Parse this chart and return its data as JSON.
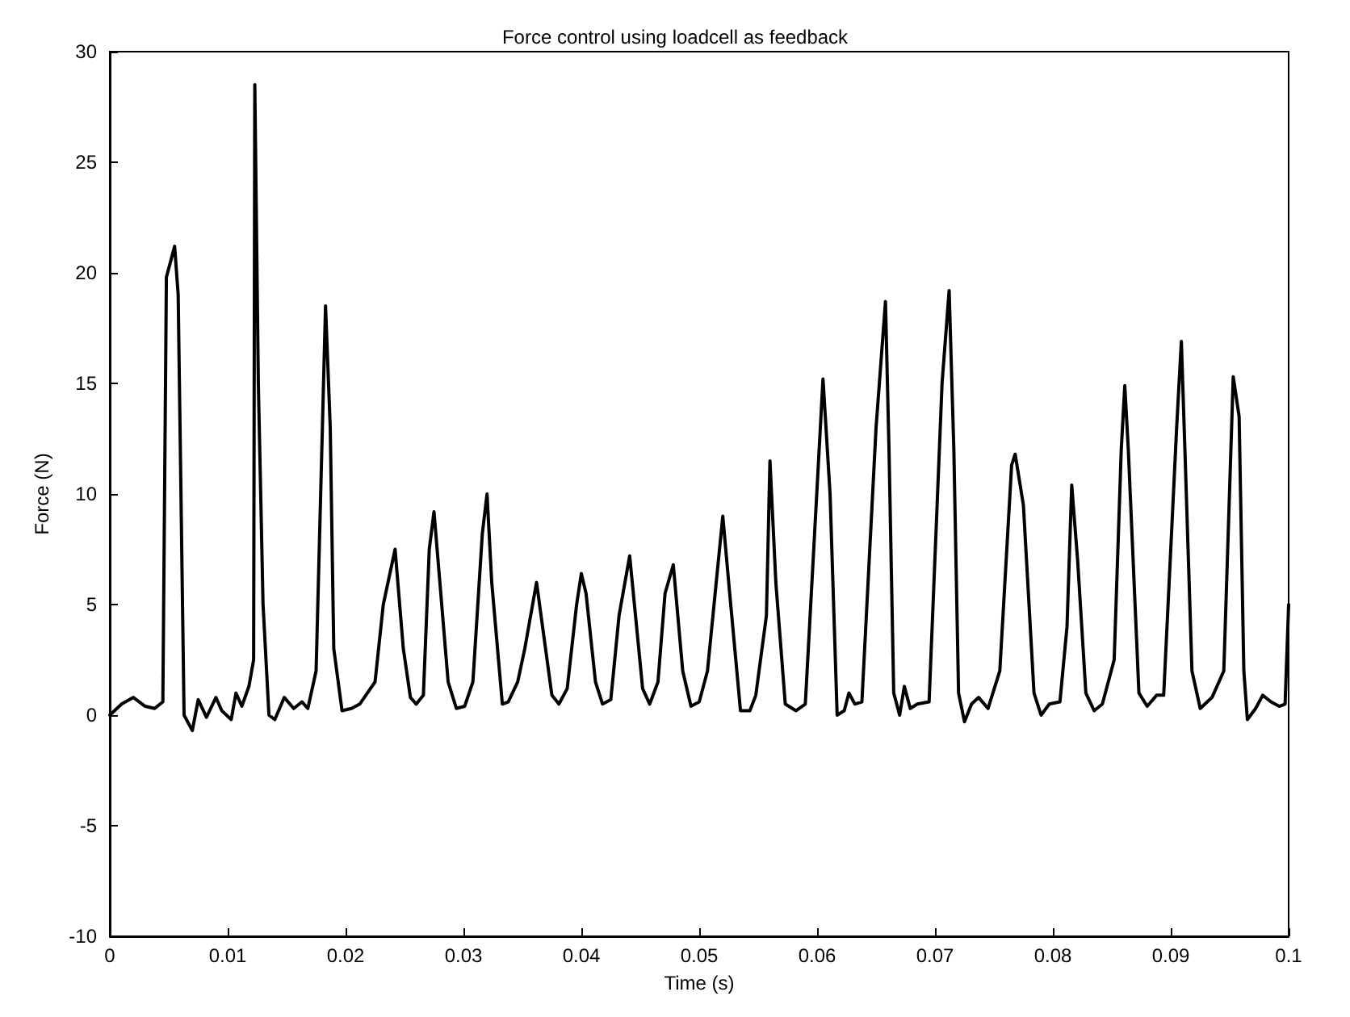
{
  "chart_data": {
    "type": "line",
    "title": "Force control using loadcell as feedback",
    "xlabel": "Time (s)",
    "ylabel": "Force (N)",
    "xlim": [
      0,
      0.1
    ],
    "xticks": [
      0,
      0.01,
      0.02,
      0.03,
      0.04,
      0.05,
      0.06,
      0.07,
      0.08,
      0.09,
      0.1
    ],
    "ylim": [
      -10,
      30
    ],
    "yticks": [
      -10,
      -5,
      0,
      5,
      10,
      15,
      20,
      25,
      30
    ],
    "marker": "none",
    "line_style": "solid",
    "series": [
      {
        "color": "#000000",
        "x": [
          0,
          0.001,
          0.002,
          0.003,
          0.0038,
          0.0045,
          0.0048,
          0.0055,
          0.0058,
          0.0063,
          0.007,
          0.0075,
          0.0082,
          0.009,
          0.0095,
          0.0103,
          0.0107,
          0.0112,
          0.0118,
          0.0122,
          0.0123,
          0.0126,
          0.013,
          0.0135,
          0.014,
          0.0148,
          0.0156,
          0.0163,
          0.0168,
          0.0175,
          0.0183,
          0.0187,
          0.019,
          0.0197,
          0.0205,
          0.0212,
          0.0225,
          0.0232,
          0.0242,
          0.0249,
          0.0255,
          0.026,
          0.0266,
          0.0271,
          0.0275,
          0.028,
          0.0287,
          0.0294,
          0.0301,
          0.0308,
          0.0316,
          0.032,
          0.0324,
          0.0333,
          0.0338,
          0.0346,
          0.0352,
          0.0362,
          0.0375,
          0.0381,
          0.0388,
          0.0396,
          0.04,
          0.0404,
          0.0412,
          0.0418,
          0.0425,
          0.0432,
          0.0441,
          0.0452,
          0.0458,
          0.0465,
          0.0471,
          0.0478,
          0.0486,
          0.0493,
          0.05,
          0.0507,
          0.052,
          0.0525,
          0.0535,
          0.0543,
          0.0548,
          0.0557,
          0.056,
          0.0565,
          0.0573,
          0.0582,
          0.059,
          0.0605,
          0.0611,
          0.0617,
          0.0623,
          0.0627,
          0.0632,
          0.0638,
          0.065,
          0.0658,
          0.0661,
          0.0665,
          0.067,
          0.0674,
          0.0679,
          0.0685,
          0.0695,
          0.0706,
          0.0712,
          0.0716,
          0.072,
          0.0725,
          0.0731,
          0.0737,
          0.0745,
          0.0755,
          0.0765,
          0.0768,
          0.0775,
          0.0784,
          0.079,
          0.0797,
          0.0806,
          0.0812,
          0.0816,
          0.0821,
          0.0828,
          0.0835,
          0.0842,
          0.0852,
          0.0858,
          0.0861,
          0.0864,
          0.0873,
          0.088,
          0.0888,
          0.0894,
          0.0905,
          0.0909,
          0.0912,
          0.0918,
          0.0925,
          0.0935,
          0.0945,
          0.0953,
          0.0958,
          0.0962,
          0.0965,
          0.0972,
          0.0978,
          0.0985,
          0.0992,
          0.0997,
          0.1
        ],
        "values": [
          0,
          0.5,
          0.8,
          0.4,
          0.3,
          0.6,
          19.8,
          21.2,
          19,
          0,
          -0.7,
          0.7,
          -0.1,
          0.8,
          0.2,
          -0.2,
          1,
          0.4,
          1.3,
          2.5,
          28.5,
          15,
          5,
          0,
          -0.2,
          0.8,
          0.3,
          0.6,
          0.3,
          2,
          18.5,
          13,
          3,
          0.2,
          0.3,
          0.5,
          1.5,
          5,
          7.5,
          3,
          0.8,
          0.5,
          0.9,
          7.5,
          9.2,
          6,
          1.5,
          0.3,
          0.4,
          1.5,
          8.2,
          10,
          6,
          0.5,
          0.6,
          1.5,
          3,
          6,
          0.9,
          0.5,
          1.2,
          5,
          6.4,
          5.5,
          1.5,
          0.5,
          0.7,
          4.5,
          7.2,
          1.2,
          0.5,
          1.5,
          5.5,
          6.8,
          2,
          0.4,
          0.6,
          2,
          9,
          6,
          0.2,
          0.2,
          0.9,
          4.5,
          11.5,
          6,
          0.5,
          0.2,
          0.5,
          15.2,
          10,
          0,
          0.2,
          1,
          0.5,
          0.6,
          13,
          18.7,
          12,
          1,
          0,
          1.3,
          0.3,
          0.5,
          0.6,
          15,
          19.2,
          12,
          1,
          -0.3,
          0.5,
          0.8,
          0.3,
          2,
          11.3,
          11.8,
          9.5,
          1,
          0,
          0.5,
          0.6,
          4,
          10.4,
          7,
          1,
          0.2,
          0.5,
          2.5,
          12,
          14.9,
          12,
          1,
          0.4,
          0.9,
          0.9,
          13,
          16.9,
          12,
          2,
          0.3,
          0.8,
          2,
          15.3,
          13.5,
          2,
          -0.2,
          0.3,
          0.9,
          0.6,
          0.4,
          0.5,
          5
        ]
      }
    ]
  }
}
